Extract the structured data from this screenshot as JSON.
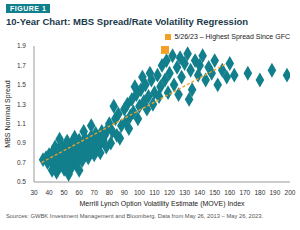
{
  "chart_data": {
    "type": "scatter",
    "figure_label": "FIGURE 1",
    "title": "10-Year Chart: MBS Spread/Rate Volatility Regression",
    "x_label": "Merrill Lynch Option Volatility Estimate (MOVE) Index",
    "y_label": "MBS Nominal Spread",
    "source": "Sources: GWBK Investment Management and Bloomberg. Data from May 26, 2013 – May 26, 2023.",
    "xlim": [
      30,
      200
    ],
    "xticks": [
      30,
      40,
      50,
      60,
      70,
      80,
      90,
      100,
      110,
      120,
      130,
      140,
      150,
      160,
      170,
      180,
      190,
      200
    ],
    "ylim": [
      0.5,
      1.9
    ],
    "yticks": [
      0.5,
      0.7,
      0.9,
      1.1,
      1.3,
      1.5,
      1.7,
      1.9
    ],
    "grid": false,
    "legend": "upper right",
    "series": [
      {
        "color": "#127f8c",
        "marker": "diamond",
        "x": [
          40,
          41,
          42,
          43,
          44,
          45,
          46,
          47,
          48,
          49,
          50,
          51,
          52,
          53,
          54,
          55,
          56,
          57,
          58,
          59,
          60,
          61,
          62,
          63,
          64,
          65,
          66,
          67,
          68,
          69,
          70,
          71,
          72,
          73,
          74,
          75,
          76,
          77,
          78,
          79,
          42,
          45,
          50,
          55,
          48,
          52,
          58,
          62,
          66,
          70,
          74,
          57,
          63,
          68,
          53,
          60,
          44,
          47,
          38,
          39,
          36,
          80,
          82,
          84,
          85,
          86,
          88,
          90,
          91,
          92,
          94,
          95,
          96,
          98,
          100,
          101,
          103,
          104,
          106,
          108,
          110,
          83,
          87,
          93,
          97,
          99,
          102,
          105,
          107,
          109,
          81,
          112,
          114,
          115,
          117,
          118,
          120,
          122,
          123,
          125,
          127,
          128,
          130,
          132,
          134,
          135,
          137,
          139,
          140,
          142,
          144,
          146,
          148,
          150,
          152,
          155,
          158,
          160,
          163,
          113,
          119,
          126,
          133,
          172,
          180,
          188,
          198
        ],
        "values": [
          0.78,
          0.72,
          0.8,
          0.68,
          0.75,
          0.7,
          0.82,
          0.66,
          0.74,
          0.79,
          0.71,
          0.85,
          0.77,
          0.69,
          0.83,
          0.9,
          0.74,
          0.8,
          0.87,
          0.76,
          0.93,
          0.82,
          0.88,
          0.78,
          0.95,
          0.85,
          0.9,
          0.8,
          0.97,
          0.87,
          0.92,
          1.0,
          0.84,
          0.95,
          0.89,
          1.02,
          0.93,
          0.98,
          0.86,
          1.05,
          0.62,
          0.6,
          0.63,
          0.65,
          0.88,
          0.92,
          0.68,
          0.72,
          0.75,
          0.78,
          0.8,
          0.96,
          1.02,
          1.08,
          0.58,
          0.62,
          0.86,
          0.94,
          0.75,
          0.7,
          0.73,
          1.1,
          1.02,
          1.15,
          0.98,
          1.2,
          1.08,
          1.25,
          1.12,
          1.3,
          1.18,
          1.35,
          1.22,
          1.4,
          1.28,
          1.45,
          1.33,
          1.5,
          1.38,
          1.55,
          1.42,
          1.28,
          0.95,
          1.05,
          1.48,
          1.15,
          1.58,
          1.25,
          1.62,
          1.3,
          0.9,
          1.6,
          1.48,
          1.7,
          1.55,
          1.75,
          1.62,
          1.8,
          1.5,
          1.68,
          1.78,
          1.58,
          1.72,
          1.82,
          1.65,
          1.45,
          1.75,
          1.6,
          1.7,
          1.8,
          1.55,
          1.68,
          1.62,
          1.75,
          1.5,
          1.65,
          1.58,
          1.72,
          1.6,
          1.38,
          1.42,
          1.4,
          1.35,
          1.62,
          1.55,
          1.65,
          1.6
        ]
      },
      {
        "type": "line",
        "line_style": "dashed",
        "color": "#f4a024",
        "x": [
          35,
          158
        ],
        "values": [
          0.7,
          1.72
        ]
      },
      {
        "name": "5/26/23 – Highest Spread Since GFC",
        "color": "#f4a024",
        "marker": "square",
        "x": [
          117
        ],
        "values": [
          1.86
        ]
      }
    ]
  }
}
